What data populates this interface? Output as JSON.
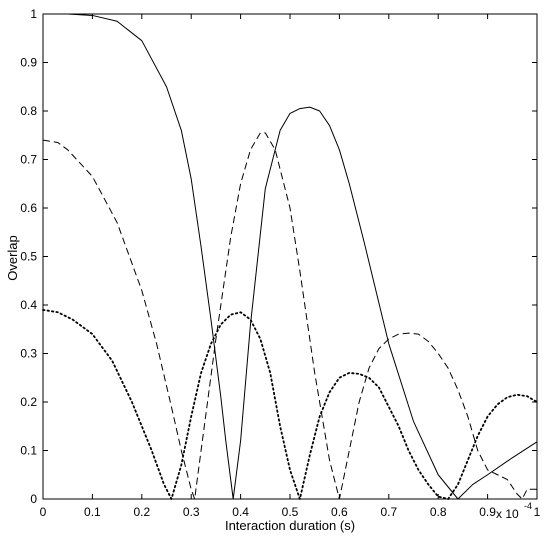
{
  "chart_data": {
    "type": "line",
    "title": "",
    "xlabel": "Interaction duration (s)",
    "ylabel": "Overlap",
    "x_multiplier_label": "x 10",
    "x_multiplier_exponent": "-4",
    "xlim": [
      0,
      1
    ],
    "ylim": [
      0,
      1
    ],
    "xticks": [
      "0",
      "0.1",
      "0.2",
      "0.3",
      "0.4",
      "0.5",
      "0.6",
      "0.7",
      "0.8",
      "0.9",
      "1"
    ],
    "yticks": [
      "0",
      "0.1",
      "0.2",
      "0.3",
      "0.4",
      "0.5",
      "0.6",
      "0.7",
      "0.8",
      "0.9",
      "1"
    ],
    "grid": false,
    "legend": "none",
    "series": [
      {
        "style": "solid",
        "color": "#000000",
        "x": [
          0,
          0.05,
          0.1,
          0.15,
          0.2,
          0.25,
          0.28,
          0.3,
          0.32,
          0.34,
          0.36,
          0.37,
          0.385,
          0.4,
          0.42,
          0.45,
          0.48,
          0.5,
          0.52,
          0.54,
          0.56,
          0.58,
          0.6,
          0.62,
          0.65,
          0.7,
          0.75,
          0.8,
          0.84,
          0.87,
          0.9,
          0.95,
          1.0
        ],
        "y": [
          1.0,
          1.0,
          0.997,
          0.985,
          0.945,
          0.85,
          0.76,
          0.66,
          0.52,
          0.37,
          0.21,
          0.12,
          0.0,
          0.12,
          0.36,
          0.64,
          0.76,
          0.795,
          0.805,
          0.808,
          0.8,
          0.77,
          0.72,
          0.65,
          0.53,
          0.32,
          0.16,
          0.05,
          0.0,
          0.03,
          0.05,
          0.085,
          0.118
        ]
      },
      {
        "style": "dashed",
        "color": "#000000",
        "x": [
          0,
          0.03,
          0.05,
          0.1,
          0.15,
          0.2,
          0.23,
          0.26,
          0.28,
          0.3,
          0.307,
          0.32,
          0.35,
          0.38,
          0.4,
          0.42,
          0.44,
          0.45,
          0.47,
          0.5,
          0.52,
          0.55,
          0.58,
          0.6,
          0.62,
          0.64,
          0.66,
          0.68,
          0.7,
          0.72,
          0.74,
          0.76,
          0.78,
          0.8,
          0.82,
          0.84,
          0.86,
          0.88,
          0.9,
          0.92,
          0.94,
          0.96,
          0.97,
          0.98,
          1.0
        ],
        "y": [
          0.74,
          0.735,
          0.72,
          0.665,
          0.57,
          0.43,
          0.32,
          0.19,
          0.1,
          0.02,
          0.0,
          0.1,
          0.33,
          0.54,
          0.65,
          0.72,
          0.755,
          0.755,
          0.72,
          0.6,
          0.47,
          0.26,
          0.08,
          0.0,
          0.1,
          0.2,
          0.27,
          0.31,
          0.33,
          0.34,
          0.342,
          0.34,
          0.325,
          0.3,
          0.27,
          0.225,
          0.17,
          0.1,
          0.06,
          0.05,
          0.04,
          0.01,
          0.0,
          0.02,
          0.02
        ]
      },
      {
        "style": "dotted",
        "color": "#000000",
        "x": [
          0,
          0.03,
          0.06,
          0.1,
          0.14,
          0.18,
          0.22,
          0.245,
          0.26,
          0.28,
          0.3,
          0.32,
          0.34,
          0.36,
          0.38,
          0.4,
          0.42,
          0.44,
          0.46,
          0.48,
          0.5,
          0.52,
          0.54,
          0.56,
          0.58,
          0.6,
          0.62,
          0.64,
          0.66,
          0.68,
          0.7,
          0.72,
          0.74,
          0.76,
          0.78,
          0.8,
          0.82,
          0.84,
          0.86,
          0.88,
          0.9,
          0.92,
          0.94,
          0.96,
          0.98,
          1.0
        ],
        "y": [
          0.39,
          0.385,
          0.37,
          0.34,
          0.285,
          0.2,
          0.1,
          0.03,
          0.0,
          0.07,
          0.17,
          0.26,
          0.32,
          0.36,
          0.38,
          0.385,
          0.37,
          0.33,
          0.26,
          0.15,
          0.06,
          0.0,
          0.09,
          0.17,
          0.22,
          0.25,
          0.26,
          0.258,
          0.25,
          0.23,
          0.19,
          0.15,
          0.1,
          0.06,
          0.03,
          0.005,
          0.0,
          0.03,
          0.08,
          0.13,
          0.17,
          0.195,
          0.21,
          0.215,
          0.212,
          0.2
        ]
      }
    ]
  }
}
